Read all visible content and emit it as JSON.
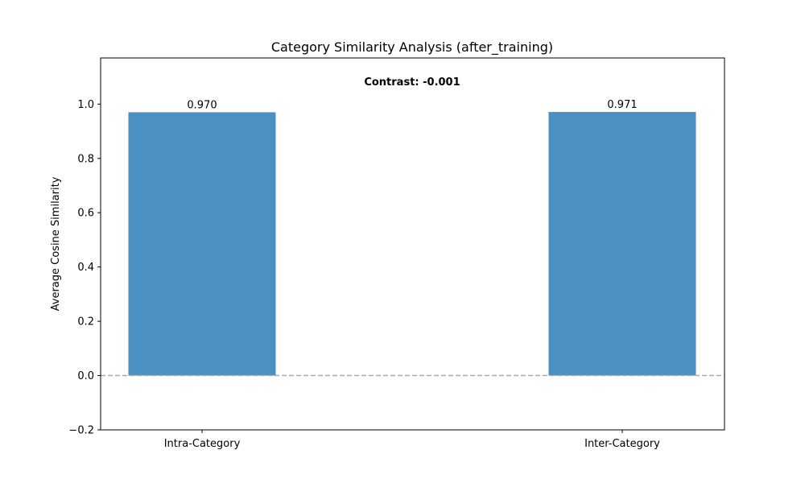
{
  "chart_data": {
    "type": "bar",
    "title": "Category Similarity Analysis (after_training)",
    "xlabel": "",
    "ylabel": "Average Cosine Similarity",
    "categories": [
      "Intra-Category",
      "Inter-Category"
    ],
    "values": [
      0.97,
      0.971
    ],
    "data_labels": [
      "0.970",
      "0.971"
    ],
    "annotation": "Contrast: -0.001",
    "ylim": [
      -0.2,
      1.17
    ],
    "yticks": [
      -0.2,
      0.0,
      0.2,
      0.4,
      0.6,
      0.8,
      1.0
    ],
    "ytick_labels": [
      "−0.2",
      "0.0",
      "0.2",
      "0.4",
      "0.6",
      "0.8",
      "1.0"
    ],
    "reference_line": {
      "y": 0,
      "style": "dashed"
    },
    "grid": false,
    "legend": "none",
    "colors": {
      "bar": "#4a90c2",
      "reference_line": "#aaaaaa",
      "axes": "#000000"
    }
  }
}
